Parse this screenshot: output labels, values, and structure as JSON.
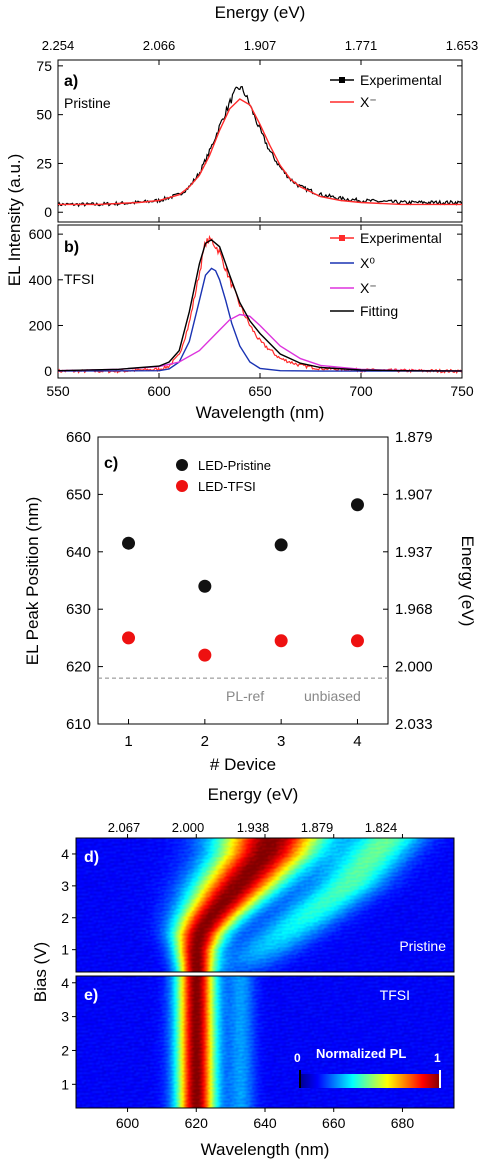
{
  "chart_data": [
    {
      "panel": "a)",
      "type": "line",
      "sample": "Pristine",
      "xlabel": "",
      "ylabel": "",
      "top_xlabel": "Energy (eV)",
      "top_ticks": [
        "2.254",
        "2.066",
        "1.907",
        "1.771",
        "1.653"
      ],
      "top_tick_wavelengths": [
        550,
        600,
        650,
        700,
        750
      ],
      "xlim": [
        550,
        750
      ],
      "ylim": [
        -5,
        78
      ],
      "yticks": [
        0,
        25,
        50,
        75
      ],
      "legend": [
        "Experimental",
        "X⁻"
      ],
      "series": [
        {
          "name": "Experimental",
          "color": "#000000",
          "x": [
            550,
            570,
            590,
            600,
            610,
            615,
            620,
            625,
            630,
            635,
            638,
            640,
            642,
            645,
            650,
            655,
            660,
            665,
            670,
            680,
            690,
            700,
            720,
            750
          ],
          "y": [
            4,
            4,
            5,
            6,
            9,
            13,
            20,
            31,
            44,
            56,
            62,
            64,
            62,
            55,
            42,
            31,
            23,
            17,
            13,
            9,
            7,
            6,
            5,
            5
          ]
        },
        {
          "name": "X⁻",
          "color": "#ff2a2a",
          "x": [
            550,
            570,
            590,
            600,
            610,
            615,
            620,
            625,
            630,
            635,
            640,
            645,
            650,
            655,
            660,
            665,
            670,
            680,
            690,
            700,
            720,
            750
          ],
          "y": [
            4,
            4,
            5,
            6,
            9,
            13,
            19,
            29,
            42,
            53,
            58,
            55,
            45,
            34,
            24,
            17,
            13,
            8,
            6,
            5,
            4,
            4
          ]
        }
      ]
    },
    {
      "panel": "b)",
      "type": "line",
      "sample": "TFSI",
      "xlabel": "Wavelength (nm)",
      "ylabel": "EL Intensity (a.u.)",
      "xlim": [
        550,
        750
      ],
      "xticks": [
        550,
        600,
        650,
        700,
        750
      ],
      "ylim": [
        -30,
        640
      ],
      "yticks": [
        0,
        200,
        400,
        600
      ],
      "legend": [
        "Experimental",
        "X⁰",
        "X⁻",
        "Fitting"
      ],
      "series": [
        {
          "name": "Experimental",
          "color": "#ff2a2a",
          "x": [
            550,
            580,
            600,
            605,
            610,
            615,
            620,
            623,
            626,
            630,
            635,
            640,
            645,
            650,
            660,
            670,
            680,
            700,
            720,
            750
          ],
          "y": [
            0,
            0,
            8,
            22,
            70,
            210,
            430,
            565,
            575,
            520,
            400,
            290,
            200,
            130,
            55,
            25,
            12,
            4,
            2,
            0
          ]
        },
        {
          "name": "X⁰",
          "color": "#1a33b3",
          "x": [
            550,
            600,
            605,
            610,
            615,
            620,
            623,
            626,
            628,
            630,
            633,
            636,
            640,
            645,
            650,
            660,
            680,
            750
          ],
          "y": [
            0,
            2,
            10,
            40,
            130,
            310,
            420,
            450,
            440,
            400,
            310,
            210,
            110,
            40,
            12,
            2,
            0,
            0
          ]
        },
        {
          "name": "X⁻",
          "color": "#dd33dd",
          "x": [
            550,
            580,
            600,
            610,
            620,
            630,
            635,
            640,
            645,
            650,
            660,
            670,
            680,
            700,
            720,
            750
          ],
          "y": [
            2,
            8,
            20,
            40,
            90,
            180,
            225,
            248,
            240,
            200,
            110,
            55,
            25,
            8,
            3,
            1
          ]
        },
        {
          "name": "Fitting",
          "color": "#000000",
          "x": [
            550,
            580,
            600,
            605,
            610,
            615,
            620,
            623,
            626,
            630,
            635,
            640,
            645,
            650,
            660,
            670,
            680,
            700,
            720,
            750
          ],
          "y": [
            2,
            8,
            22,
            40,
            90,
            260,
            470,
            560,
            575,
            545,
            420,
            300,
            220,
            165,
            75,
            35,
            16,
            5,
            2,
            1
          ]
        }
      ]
    },
    {
      "panel": "c)",
      "type": "scatter",
      "xlabel": "# Device",
      "ylabel": "EL Peak Position (nm)",
      "ylabel_right": "Energy (eV)",
      "xlim": [
        0.6,
        4.4
      ],
      "xticks": [
        1,
        2,
        3,
        4
      ],
      "ylim": [
        610,
        660
      ],
      "yticks": [
        610,
        620,
        630,
        640,
        650,
        660
      ],
      "right_ticks": [
        "1.879",
        "1.907",
        "1.937",
        "1.968",
        "2.000",
        "2.033"
      ],
      "right_tick_wavelengths": [
        660,
        650,
        640,
        630,
        620,
        610
      ],
      "reference_line": {
        "y": 618,
        "label_left": "PL-ref",
        "label_right": "unbiased"
      },
      "legend": [
        "LED-Pristine",
        "LED-TFSI"
      ],
      "series": [
        {
          "name": "LED-Pristine",
          "color": "#111111",
          "x": [
            1,
            2,
            3,
            4
          ],
          "y": [
            641.5,
            634,
            641.2,
            648.2
          ]
        },
        {
          "name": "LED-TFSI",
          "color": "#ee1111",
          "x": [
            1,
            2,
            3,
            4
          ],
          "y": [
            625,
            622,
            624.5,
            624.5
          ]
        }
      ]
    },
    {
      "panel": "d)",
      "type": "heatmap",
      "sample": "Pristine",
      "top_xlabel": "Energy (eV)",
      "top_ticks": [
        "2.067",
        "2.000",
        "1.938",
        "1.879",
        "1.824"
      ],
      "top_tick_wavelengths": [
        600,
        620,
        640,
        660,
        680
      ],
      "xlim": [
        585,
        695
      ],
      "ylim": [
        0.3,
        4.5
      ],
      "yticks": [
        1,
        2,
        3,
        4
      ],
      "peak_wavelength_vs_bias": {
        "bias": [
          0.3,
          1,
          1.5,
          2,
          2.5,
          3,
          3.5,
          4,
          4.5
        ],
        "wavelength": [
          620,
          620,
          621,
          624,
          628,
          632,
          636,
          640,
          642
        ]
      },
      "peak_width_vs_bias": {
        "bias": [
          0.3,
          1,
          2,
          3,
          4,
          4.5
        ],
        "width": [
          5,
          6,
          9,
          12,
          14,
          15
        ]
      },
      "tail_vs_bias": {
        "bias": [
          0.3,
          1,
          2,
          3,
          4,
          4.5
        ],
        "center": [
          632,
          640,
          652,
          664,
          672,
          676
        ],
        "amplitude": [
          0.1,
          0.22,
          0.32,
          0.38,
          0.4,
          0.4
        ]
      }
    },
    {
      "panel": "e)",
      "type": "heatmap",
      "sample": "TFSI",
      "xlabel": "Wavelength (nm)",
      "ylabel": "Bias (V)",
      "xlim": [
        585,
        695
      ],
      "xticks": [
        600,
        620,
        640,
        660,
        680
      ],
      "ylim": [
        0.3,
        4.2
      ],
      "yticks": [
        1,
        2,
        3,
        4
      ],
      "peak_wavelength": 620,
      "peak_width": 5.5,
      "shoulder": {
        "center": 633,
        "amplitude": 0.18
      },
      "colorbar": {
        "label": "Normalized PL",
        "min_label": "0",
        "max_label": "1"
      }
    }
  ]
}
